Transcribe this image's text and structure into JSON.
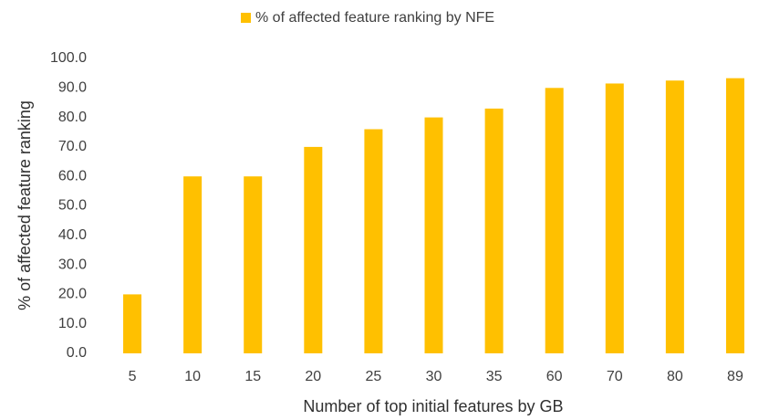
{
  "chart_data": {
    "type": "bar",
    "x_label": "Number of top initial features by GB",
    "y_label": "% of  affected feature  ranking",
    "categories": [
      "5",
      "10",
      "15",
      "20",
      "25",
      "30",
      "35",
      "60",
      "70",
      "80",
      "89"
    ],
    "series": [
      {
        "name": "% of affected feature ranking by NFE",
        "color": "#ffc000",
        "values": [
          20,
          60,
          60,
          70,
          76,
          80,
          83,
          90,
          91.5,
          92.5,
          93.3
        ]
      }
    ],
    "ylim": [
      0,
      100
    ],
    "yticks": [
      {
        "value": 0,
        "label": "0.0"
      },
      {
        "value": 10,
        "label": "10.0"
      },
      {
        "value": 20,
        "label": "20.0"
      },
      {
        "value": 30,
        "label": "30.0"
      },
      {
        "value": 40,
        "label": "40.0"
      },
      {
        "value": 50,
        "label": "50.0"
      },
      {
        "value": 60,
        "label": "60.0"
      },
      {
        "value": 70,
        "label": "70.0"
      },
      {
        "value": 80,
        "label": "80.0"
      },
      {
        "value": 90,
        "label": "90.0"
      },
      {
        "value": 100,
        "label": "100.0"
      }
    ],
    "grid": false,
    "legend": "top"
  }
}
